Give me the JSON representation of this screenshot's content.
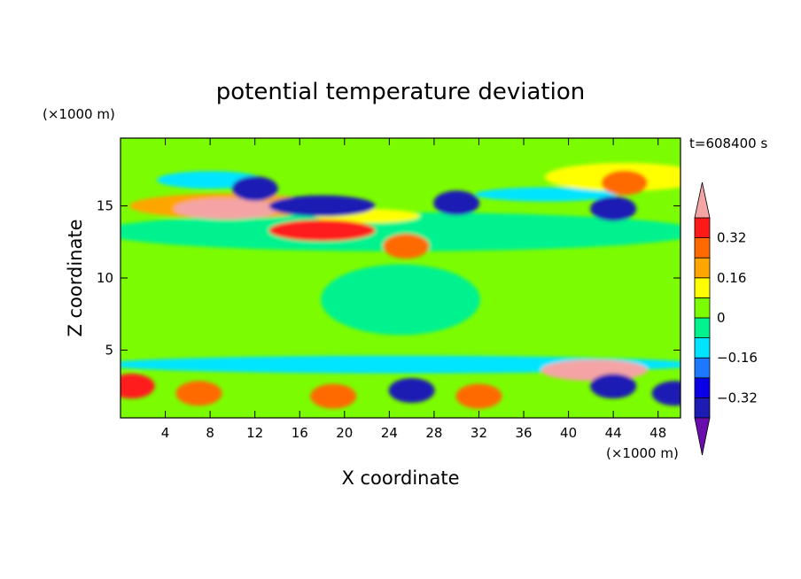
{
  "chart_data": {
    "type": "heatmap",
    "title": "potential temperature deviation",
    "xlabel": "X coordinate",
    "ylabel": "Z coordinate",
    "x_unit": "(×1000 m)",
    "y_unit": "(×1000 m)",
    "time_label": "t=608400 s",
    "xlim": [
      0,
      50
    ],
    "ylim": [
      0.3,
      19.7
    ],
    "x_ticks": [
      4,
      8,
      12,
      16,
      20,
      24,
      28,
      32,
      36,
      40,
      44,
      48
    ],
    "y_ticks": [
      5,
      10,
      15
    ],
    "colorbar": {
      "ticks": [
        "0.32",
        "0.16",
        "0",
        "−0.16",
        "−0.32"
      ],
      "tick_values": [
        0.32,
        0.16,
        0,
        -0.16,
        -0.32
      ],
      "levels": [
        -0.4,
        -0.32,
        -0.24,
        -0.16,
        -0.08,
        0,
        0.08,
        0.16,
        0.24,
        0.32,
        0.4
      ],
      "colors_low_to_high": [
        "#6a0dad",
        "#1c1cb4",
        "#0a00e6",
        "#1e78ff",
        "#00e5ff",
        "#00f28f",
        "#7cfc00",
        "#ffff00",
        "#ffa500",
        "#ff6a00",
        "#ff1a1a",
        "#f4a4a4"
      ]
    },
    "grid": false,
    "features": [
      {
        "x": 9.5,
        "z": 14.8,
        "value": 0.45
      },
      {
        "x": 18.0,
        "z": 13.3,
        "value": 0.38
      },
      {
        "x": 25.5,
        "z": 12.2,
        "value": 0.3
      },
      {
        "x": 12.0,
        "z": 16.2,
        "value": -0.35
      },
      {
        "x": 18.0,
        "z": 15.0,
        "value": -0.36
      },
      {
        "x": 30.0,
        "z": 15.2,
        "value": -0.33
      },
      {
        "x": 44.0,
        "z": 14.8,
        "value": -0.34
      },
      {
        "x": 45.0,
        "z": 16.6,
        "value": 0.25
      },
      {
        "x": 42.3,
        "z": 3.6,
        "value": 0.42
      },
      {
        "x": 1.0,
        "z": 2.5,
        "value": 0.32
      },
      {
        "x": 7.0,
        "z": 2.0,
        "value": 0.24
      },
      {
        "x": 19.0,
        "z": 1.8,
        "value": 0.24
      },
      {
        "x": 32.0,
        "z": 1.8,
        "value": 0.24
      },
      {
        "x": 26.0,
        "z": 2.2,
        "value": -0.33
      },
      {
        "x": 44.0,
        "z": 2.5,
        "value": -0.34
      },
      {
        "x": 49.5,
        "z": 2.0,
        "value": -0.34
      }
    ]
  }
}
